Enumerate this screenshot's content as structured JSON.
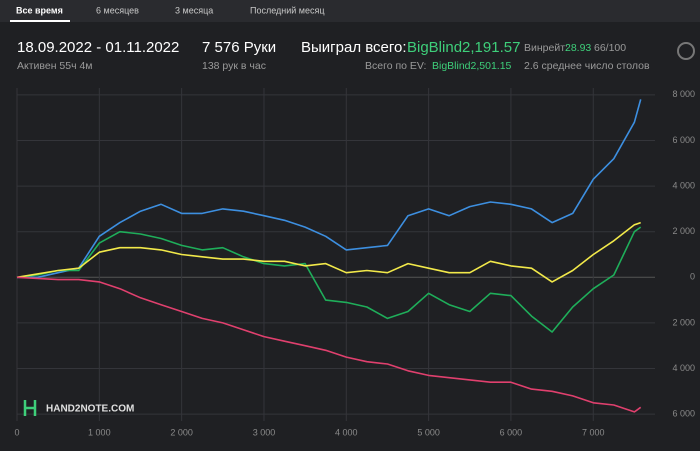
{
  "tabs": [
    "Все время",
    "6 месяцев",
    "3 месяца",
    "Последний месяц"
  ],
  "stats": {
    "period": "18.09.2022 - 01.11.2022",
    "active": "Активен 55ч 4м",
    "hands": "7 576 Руки",
    "hands_per_hour": "138 рук в час",
    "won_label": "Выиграл всего:",
    "won_value": "BigBlind2,191.57",
    "ev_label": "Всего по EV:",
    "ev_value": "BigBlind2,501.15",
    "winrate_label": "Винрейт:",
    "winrate_value": "28.93",
    "winrate_unit": "66/100",
    "tables": "2.6 среднее число столов"
  },
  "logo": "HAND2NOTE.COM",
  "chart_data": {
    "type": "line",
    "x": [
      0,
      250,
      500,
      750,
      1000,
      1250,
      1500,
      1750,
      2000,
      2250,
      2500,
      2750,
      3000,
      3250,
      3500,
      3750,
      4000,
      4250,
      4500,
      4750,
      5000,
      5250,
      5500,
      5750,
      6000,
      6250,
      6500,
      6750,
      7000,
      7250,
      7500,
      7576
    ],
    "series": [
      {
        "color": "#3d8fe0",
        "values": [
          0,
          0,
          200,
          400,
          1800,
          2400,
          2900,
          3200,
          2800,
          2800,
          3000,
          2900,
          2700,
          2500,
          2200,
          1800,
          1200,
          1300,
          1400,
          2700,
          3000,
          2700,
          3100,
          3300,
          3200,
          3000,
          2400,
          2800,
          4300,
          5200,
          6800,
          7800
        ]
      },
      {
        "color": "#1fae5a",
        "values": [
          0,
          100,
          300,
          300,
          1500,
          2000,
          1900,
          1700,
          1400,
          1200,
          1300,
          900,
          600,
          500,
          600,
          -1000,
          -1100,
          -1300,
          -1800,
          -1500,
          -700,
          -1200,
          -1500,
          -700,
          -800,
          -1700,
          -2400,
          -1300,
          -500,
          100,
          2000,
          2200
        ]
      },
      {
        "color": "#f2e94a",
        "values": [
          0,
          150,
          300,
          400,
          1100,
          1300,
          1300,
          1200,
          1000,
          900,
          800,
          800,
          700,
          700,
          500,
          600,
          200,
          300,
          200,
          600,
          400,
          200,
          200,
          700,
          500,
          400,
          -200,
          300,
          1000,
          1600,
          2300,
          2400
        ]
      },
      {
        "color": "#e0406e",
        "values": [
          0,
          -50,
          -100,
          -100,
          -200,
          -500,
          -900,
          -1200,
          -1500,
          -1800,
          -2000,
          -2300,
          -2600,
          -2800,
          -3000,
          -3200,
          -3500,
          -3700,
          -3800,
          -4100,
          -4300,
          -4400,
          -4500,
          -4600,
          -4600,
          -4900,
          -5000,
          -5200,
          -5500,
          -5600,
          -5900,
          -5700
        ]
      }
    ],
    "xlim": [
      0,
      7750
    ],
    "ylim": [
      -6300,
      8300
    ],
    "xticks": [
      0,
      {
        "value": 1000,
        "label": "1 000"
      },
      {
        "value": 2000,
        "label": "2 000"
      },
      {
        "value": 3000,
        "label": "3 000"
      },
      {
        "value": 4000,
        "label": "4 000"
      },
      {
        "value": 5000,
        "label": "5 000"
      },
      {
        "value": 6000,
        "label": "6 000"
      },
      {
        "value": 7000,
        "label": "7 000"
      }
    ],
    "yticks": [
      {
        "value": 8000,
        "label": "8 000"
      },
      {
        "value": 6000,
        "label": "6 000"
      },
      {
        "value": 4000,
        "label": "4 000"
      },
      {
        "value": 2000,
        "label": "2 000"
      },
      0,
      {
        "value": -2000,
        "label": "2 000"
      },
      {
        "value": -4000,
        "label": "4 000"
      },
      {
        "value": -6000,
        "label": "6 000"
      }
    ],
    "grid": true
  }
}
